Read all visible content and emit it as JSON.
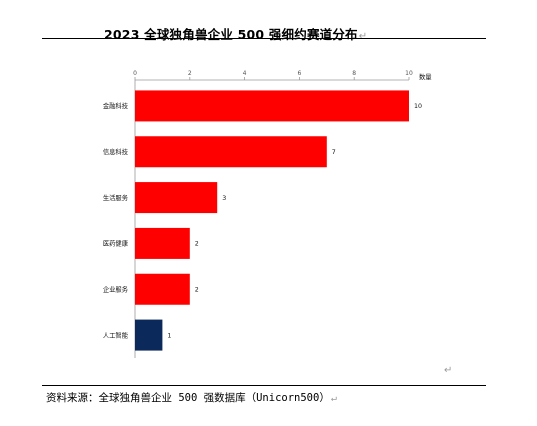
{
  "header": {
    "title": "2023 全球独角兽企业 500 强细约赛道分布",
    "return_mark": "↵"
  },
  "footer": {
    "source": "资料来源：全球独角兽企业 500 强数据库（Unicorn500）",
    "return_mark": "↵"
  },
  "stray_mark": "↵",
  "chart_data": {
    "type": "bar",
    "orientation": "horizontal",
    "axis_position": "top",
    "categories": [
      "金融科技",
      "信息科技",
      "生活服务",
      "医药健康",
      "企业服务",
      "人工智能"
    ],
    "values": [
      10,
      7,
      3,
      2,
      2,
      1
    ],
    "bar_colors": [
      "#ff0000",
      "#ff0000",
      "#ff0000",
      "#ff0000",
      "#ff0000",
      "#0b2a5b"
    ],
    "xlim": [
      0,
      10
    ],
    "xticks": [
      0,
      2,
      4,
      6,
      8,
      10
    ],
    "xlabel": "数量",
    "grid": false,
    "legend": "none"
  }
}
